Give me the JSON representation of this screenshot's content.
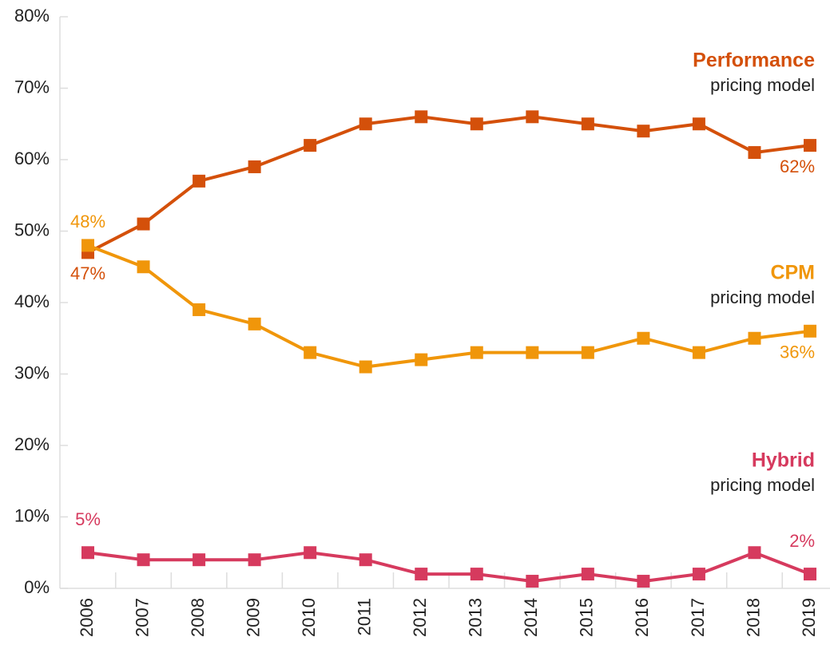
{
  "chart_data": {
    "type": "line",
    "categories": [
      "2006",
      "2007",
      "2008",
      "2009",
      "2010",
      "2011",
      "2012",
      "2013",
      "2014",
      "2015",
      "2016",
      "2017",
      "2018",
      "2019"
    ],
    "series": [
      {
        "name": "Performance",
        "note": "pricing model",
        "color": "#d4500a",
        "values": [
          47,
          51,
          57,
          59,
          62,
          65,
          66,
          65,
          66,
          65,
          64,
          65,
          61,
          62
        ],
        "value_labels": [
          "47%",
          null,
          null,
          null,
          null,
          null,
          null,
          null,
          null,
          null,
          null,
          null,
          null,
          "62%"
        ]
      },
      {
        "name": "CPM",
        "note": "pricing model",
        "color": "#f0960a",
        "values": [
          48,
          45,
          39,
          37,
          33,
          31,
          32,
          33,
          33,
          33,
          35,
          33,
          35,
          36
        ],
        "value_labels": [
          "48%",
          null,
          null,
          null,
          null,
          null,
          null,
          null,
          null,
          null,
          null,
          null,
          null,
          "36%"
        ]
      },
      {
        "name": "Hybrid",
        "note": "pricing model",
        "color": "#d63a5e",
        "values": [
          5,
          4,
          4,
          4,
          5,
          4,
          2,
          2,
          1,
          2,
          1,
          2,
          5,
          2
        ],
        "value_labels": [
          "5%",
          null,
          null,
          null,
          null,
          null,
          null,
          null,
          null,
          null,
          null,
          null,
          null,
          "2%"
        ]
      }
    ],
    "ylim": [
      0,
      80
    ],
    "yticks": [
      {
        "value": 0,
        "label": "0%"
      },
      {
        "value": 10,
        "label": "10%"
      },
      {
        "value": 20,
        "label": "20%"
      },
      {
        "value": 30,
        "label": "30%"
      },
      {
        "value": 40,
        "label": "40%"
      },
      {
        "value": 50,
        "label": "50%"
      },
      {
        "value": 60,
        "label": "60%"
      },
      {
        "value": 70,
        "label": "70%"
      },
      {
        "value": 80,
        "label": "80%"
      }
    ],
    "grid": false
  }
}
